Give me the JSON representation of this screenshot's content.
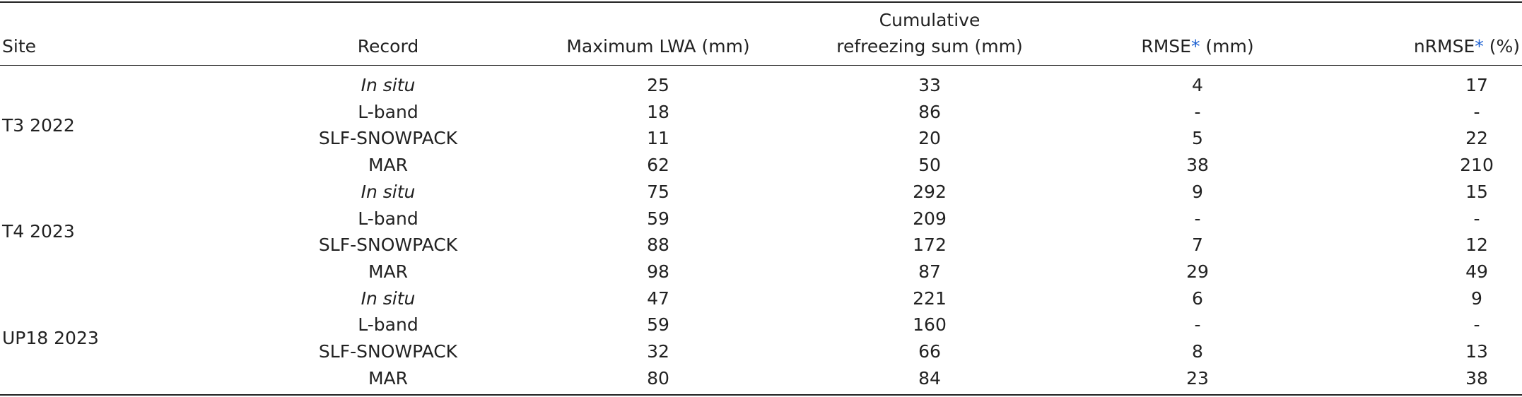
{
  "table": {
    "headers": [
      "Site",
      "Record",
      "Maximum LWA (mm)",
      [
        "Cumulative",
        "refreezing sum (mm)"
      ],
      "RMSE* (mm)",
      "nRMSE* (%)"
    ],
    "groups": [
      {
        "site": "T3 2022",
        "rows": [
          [
            "In situ",
            "25",
            "33",
            "4",
            "17"
          ],
          [
            "L-band",
            "18",
            "86",
            "-",
            "-"
          ],
          [
            "SLF-SNOWPACK",
            "11",
            "20",
            "5",
            "22"
          ],
          [
            "MAR",
            "62",
            "50",
            "38",
            "210"
          ]
        ]
      },
      {
        "site": "T4 2023",
        "rows": [
          [
            "In situ",
            "75",
            "292",
            "9",
            "15"
          ],
          [
            "L-band",
            "59",
            "209",
            "-",
            "-"
          ],
          [
            "SLF-SNOWPACK",
            "88",
            "172",
            "7",
            "12"
          ],
          [
            "MAR",
            "98",
            "87",
            "29",
            "49"
          ]
        ]
      },
      {
        "site": "UP18 2023",
        "rows": [
          [
            "In situ",
            "47",
            "221",
            "6",
            "9"
          ],
          [
            "L-band",
            "59",
            "160",
            "-",
            "-"
          ],
          [
            "SLF-SNOWPACK",
            "32",
            "66",
            "8",
            "13"
          ],
          [
            "MAR",
            "80",
            "84",
            "23",
            "38"
          ]
        ]
      }
    ]
  }
}
